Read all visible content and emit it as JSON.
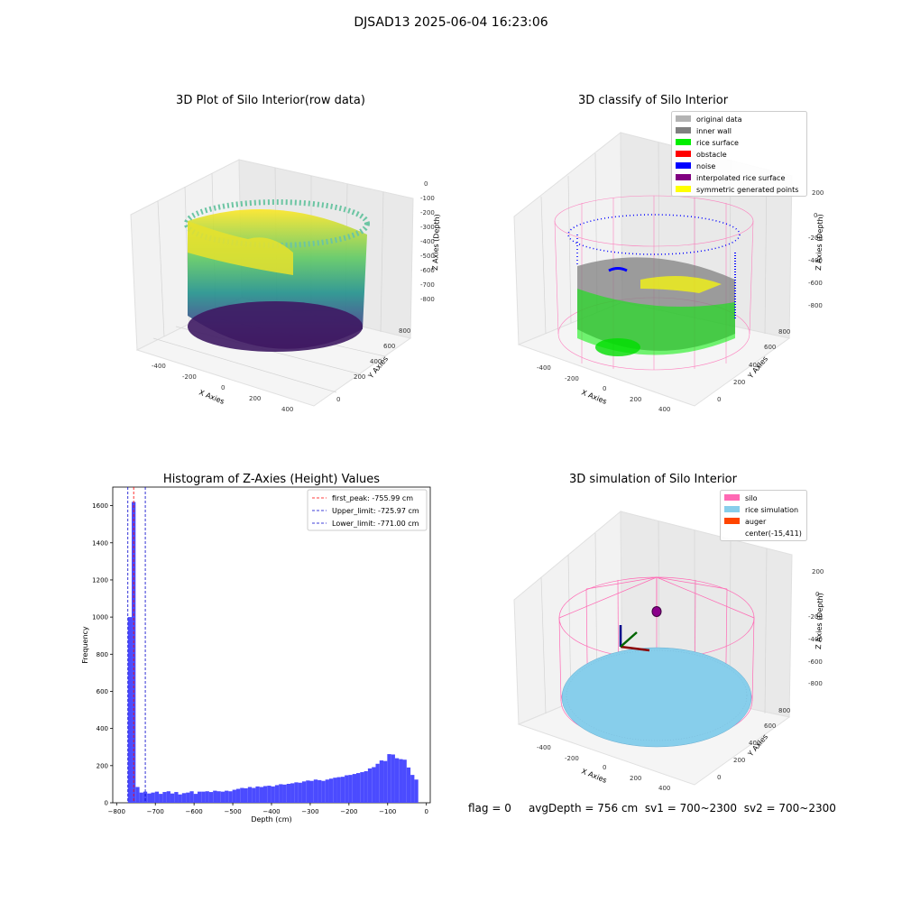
{
  "figure": {
    "suptitle": "DJSAD13 2025-06-04 16:23:06",
    "footer": {
      "flag": "flag = 0",
      "avg_depth": "avgDepth = 756 cm",
      "sv1": "sv1 = 700~2300",
      "sv2": "sv2 = 700~2300"
    }
  },
  "colors": {
    "histogram_bar": "#4b4bff",
    "first_peak_line": "#ff0000",
    "limit_lines": "#0000cc",
    "original_data": "#b3b3b3",
    "inner_wall": "#808080",
    "rice_surface": "#00ee00",
    "obstacle": "#ff0000",
    "noise": "#0000ff",
    "interpolated_rice_surface": "#800080",
    "symmetric_generated_points": "#ffff00",
    "silo": "#ff69b4",
    "rice_simulation": "#87ceeb",
    "auger": "#ff4500"
  },
  "panels": {
    "raw": {
      "title": "3D Plot of Silo Interior(row data)",
      "x_axis_label": "X Axies",
      "y_axis_label": "Y Axies",
      "z_axis_label": "Z Axies (Depth)",
      "x_ticks": [
        "-400",
        "-200",
        "0",
        "200",
        "400"
      ],
      "y_ticks": [
        "0",
        "200",
        "400",
        "600",
        "800"
      ],
      "z_ticks": [
        "0",
        "-100",
        "-200",
        "-300",
        "-400",
        "-500",
        "-600",
        "-700",
        "-800"
      ]
    },
    "classify": {
      "title": "3D classify of Silo Interior",
      "x_axis_label": "X Axies",
      "y_axis_label": "Y Axies",
      "z_axis_label": "Z Axies (Depth)",
      "x_ticks": [
        "-400",
        "-200",
        "0",
        "200",
        "400"
      ],
      "y_ticks": [
        "0",
        "200",
        "400",
        "600",
        "800"
      ],
      "z_ticks": [
        "200",
        "0",
        "-200",
        "-400",
        "-600",
        "-800"
      ],
      "legend": [
        {
          "label": "original data",
          "color_key": "original_data"
        },
        {
          "label": "inner wall",
          "color_key": "inner_wall"
        },
        {
          "label": "rice surface",
          "color_key": "rice_surface"
        },
        {
          "label": "obstacle",
          "color_key": "obstacle"
        },
        {
          "label": "noise",
          "color_key": "noise"
        },
        {
          "label": "interpolated rice surface",
          "color_key": "interpolated_rice_surface"
        },
        {
          "label": "symmetric generated points",
          "color_key": "symmetric_generated_points"
        }
      ]
    },
    "simulation": {
      "title": "3D simulation of Silo Interior",
      "x_axis_label": "X Axies",
      "y_axis_label": "Y Axies",
      "z_axis_label": "Z Axies (Depth)",
      "x_ticks": [
        "-400",
        "-200",
        "0",
        "200",
        "400"
      ],
      "y_ticks": [
        "0",
        "200",
        "400",
        "600",
        "800"
      ],
      "z_ticks": [
        "200",
        "0",
        "-200",
        "-400",
        "-600",
        "-800"
      ],
      "legend": [
        {
          "label": "silo",
          "color_key": "silo"
        },
        {
          "label": "rice simulation",
          "color_key": "rice_simulation"
        },
        {
          "label": "auger",
          "color_key": "auger"
        },
        {
          "label": "center(-15,411)",
          "color_key": ""
        }
      ]
    }
  },
  "chart_data": {
    "type": "bar",
    "title": "Histogram of Z-Axies (Height) Values",
    "xlabel": "Depth (cm)",
    "ylabel": "Frequency",
    "xlim": [
      -810,
      10
    ],
    "ylim": [
      0,
      1700
    ],
    "x_ticks": [
      -800,
      -700,
      -600,
      -500,
      -400,
      -300,
      -200,
      -100,
      0
    ],
    "y_ticks": [
      0,
      200,
      400,
      600,
      800,
      1000,
      1200,
      1400,
      1600
    ],
    "bins": [
      {
        "left": -771,
        "right": -761,
        "count": 1000
      },
      {
        "left": -761,
        "right": -751,
        "count": 1620
      },
      {
        "left": -751,
        "right": -741,
        "count": 85
      },
      {
        "left": -741,
        "right": -731,
        "count": 55
      },
      {
        "left": -731,
        "right": -721,
        "count": 60
      },
      {
        "left": -721,
        "right": -711,
        "count": 50
      },
      {
        "left": -711,
        "right": -701,
        "count": 55
      },
      {
        "left": -701,
        "right": -691,
        "count": 60
      },
      {
        "left": -691,
        "right": -681,
        "count": 48
      },
      {
        "left": -681,
        "right": -671,
        "count": 58
      },
      {
        "left": -671,
        "right": -661,
        "count": 62
      },
      {
        "left": -661,
        "right": -651,
        "count": 50
      },
      {
        "left": -651,
        "right": -641,
        "count": 58
      },
      {
        "left": -641,
        "right": -631,
        "count": 45
      },
      {
        "left": -631,
        "right": -621,
        "count": 52
      },
      {
        "left": -621,
        "right": -611,
        "count": 55
      },
      {
        "left": -611,
        "right": -601,
        "count": 62
      },
      {
        "left": -601,
        "right": -591,
        "count": 48
      },
      {
        "left": -591,
        "right": -581,
        "count": 60
      },
      {
        "left": -581,
        "right": -571,
        "count": 60
      },
      {
        "left": -571,
        "right": -561,
        "count": 62
      },
      {
        "left": -561,
        "right": -551,
        "count": 58
      },
      {
        "left": -551,
        "right": -541,
        "count": 65
      },
      {
        "left": -541,
        "right": -531,
        "count": 62
      },
      {
        "left": -531,
        "right": -521,
        "count": 60
      },
      {
        "left": -521,
        "right": -511,
        "count": 65
      },
      {
        "left": -511,
        "right": -501,
        "count": 62
      },
      {
        "left": -501,
        "right": -491,
        "count": 70
      },
      {
        "left": -491,
        "right": -481,
        "count": 75
      },
      {
        "left": -481,
        "right": -471,
        "count": 80
      },
      {
        "left": -471,
        "right": -461,
        "count": 78
      },
      {
        "left": -461,
        "right": -451,
        "count": 85
      },
      {
        "left": -451,
        "right": -441,
        "count": 80
      },
      {
        "left": -441,
        "right": -431,
        "count": 88
      },
      {
        "left": -431,
        "right": -421,
        "count": 85
      },
      {
        "left": -421,
        "right": -411,
        "count": 90
      },
      {
        "left": -411,
        "right": -401,
        "count": 92
      },
      {
        "left": -401,
        "right": -391,
        "count": 88
      },
      {
        "left": -391,
        "right": -381,
        "count": 95
      },
      {
        "left": -381,
        "right": -371,
        "count": 100
      },
      {
        "left": -371,
        "right": -361,
        "count": 98
      },
      {
        "left": -361,
        "right": -351,
        "count": 102
      },
      {
        "left": -351,
        "right": -341,
        "count": 105
      },
      {
        "left": -341,
        "right": -331,
        "count": 110
      },
      {
        "left": -331,
        "right": -321,
        "count": 108
      },
      {
        "left": -321,
        "right": -311,
        "count": 115
      },
      {
        "left": -311,
        "right": -301,
        "count": 120
      },
      {
        "left": -301,
        "right": -291,
        "count": 118
      },
      {
        "left": -291,
        "right": -281,
        "count": 125
      },
      {
        "left": -281,
        "right": -271,
        "count": 122
      },
      {
        "left": -271,
        "right": -261,
        "count": 118
      },
      {
        "left": -261,
        "right": -251,
        "count": 125
      },
      {
        "left": -251,
        "right": -241,
        "count": 130
      },
      {
        "left": -241,
        "right": -231,
        "count": 135
      },
      {
        "left": -231,
        "right": -221,
        "count": 138
      },
      {
        "left": -221,
        "right": -211,
        "count": 140
      },
      {
        "left": -211,
        "right": -201,
        "count": 148
      },
      {
        "left": -201,
        "right": -191,
        "count": 150
      },
      {
        "left": -191,
        "right": -181,
        "count": 155
      },
      {
        "left": -181,
        "right": -171,
        "count": 160
      },
      {
        "left": -171,
        "right": -161,
        "count": 165
      },
      {
        "left": -161,
        "right": -151,
        "count": 170
      },
      {
        "left": -151,
        "right": -141,
        "count": 185
      },
      {
        "left": -141,
        "right": -131,
        "count": 192
      },
      {
        "left": -131,
        "right": -121,
        "count": 210
      },
      {
        "left": -121,
        "right": -111,
        "count": 228
      },
      {
        "left": -111,
        "right": -101,
        "count": 225
      },
      {
        "left": -101,
        "right": -91,
        "count": 262
      },
      {
        "left": -91,
        "right": -81,
        "count": 260
      },
      {
        "left": -81,
        "right": -71,
        "count": 240
      },
      {
        "left": -71,
        "right": -61,
        "count": 235
      },
      {
        "left": -61,
        "right": -51,
        "count": 232
      },
      {
        "left": -51,
        "right": -41,
        "count": 190
      },
      {
        "left": -41,
        "right": -31,
        "count": 150
      },
      {
        "left": -31,
        "right": -21,
        "count": 125
      }
    ],
    "vlines": [
      {
        "name": "first_peak: -755.99 cm",
        "x": -755.99,
        "color_key": "first_peak_line"
      },
      {
        "name": "Upper_limit: -725.97 cm",
        "x": -725.97,
        "color_key": "limit_lines"
      },
      {
        "name": "Lower_limit: -771.00 cm",
        "x": -771.0,
        "color_key": "limit_lines"
      }
    ],
    "legend_position": "upper right",
    "grid": false
  }
}
